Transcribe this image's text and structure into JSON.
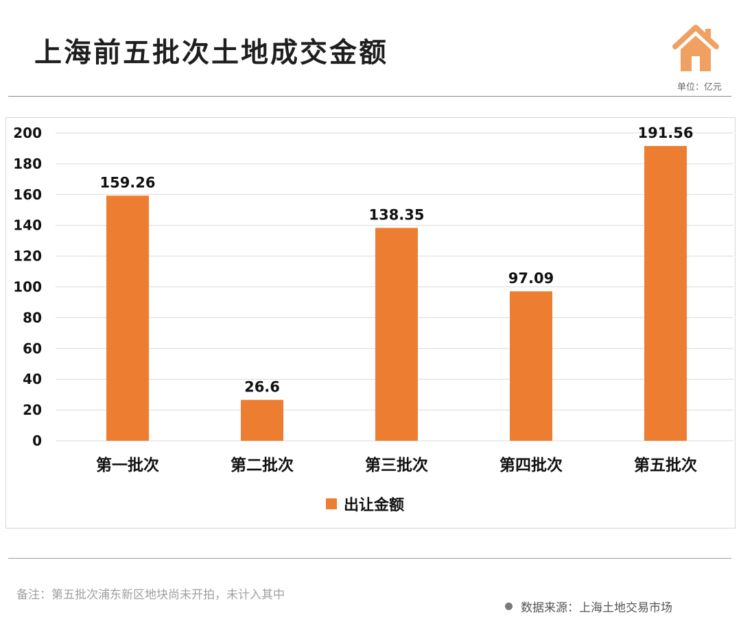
{
  "header": {
    "title": "上海前五批次土地成交金额",
    "unit": "单位：亿元"
  },
  "footer": {
    "note": "备注：第五批次浦东新区地块尚未开拍，未计入其中",
    "source": "数据来源：上海土地交易市场"
  },
  "colors": {
    "bar": "#ED7D31",
    "logo": "#F0A060",
    "grid": "#D9D9D9"
  },
  "icons": {
    "logo": "house-icon"
  },
  "chart_data": {
    "type": "bar",
    "title": "",
    "categories": [
      "第一批次",
      "第二批次",
      "第三批次",
      "第四批次",
      "第五批次"
    ],
    "series": [
      {
        "name": "出让金额",
        "values": [
          159.26,
          26.6,
          138.35,
          97.09,
          191.56
        ]
      }
    ],
    "data_labels": [
      "159.26",
      "26.6",
      "138.35",
      "97.09",
      "191.56"
    ],
    "ylim": [
      0,
      200
    ],
    "yticks": [
      0,
      20,
      40,
      60,
      80,
      100,
      120,
      140,
      160,
      180,
      200
    ],
    "grid": true,
    "legend_position": "bottom"
  }
}
